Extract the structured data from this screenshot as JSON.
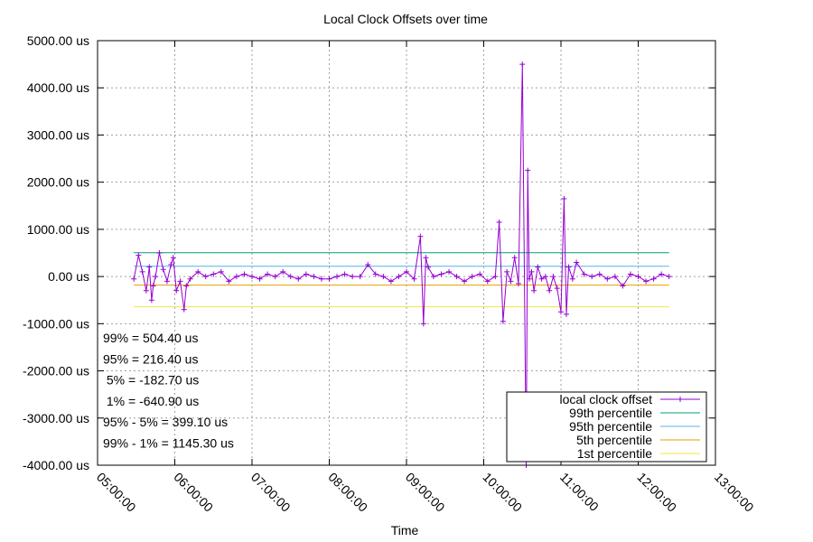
{
  "chart_data": {
    "type": "line",
    "title": "Local Clock Offsets over time",
    "xlabel": "Time",
    "ylabel": "",
    "x_ticks": [
      "05:00:00",
      "06:00:00",
      "07:00:00",
      "08:00:00",
      "09:00:00",
      "10:00:00",
      "11:00:00",
      "12:00:00",
      "13:00:00"
    ],
    "xlim_hours": [
      5,
      13
    ],
    "y_ticks": [
      "5000.00 us",
      "4000.00 us",
      "3000.00 us",
      "2000.00 us",
      "1000.00 us",
      "0.00 us",
      "-1000.00 us",
      "-2000.00 us",
      "-3000.00 us",
      "-4000.00 us"
    ],
    "ylim": [
      -4000,
      5000
    ],
    "grid": true,
    "legend_position": "bottom-right",
    "stats": [
      "99% = 504.40 us",
      "95% = 216.40 us",
      " 5% = -182.70 us",
      " 1% = -640.90 us",
      "95% - 5% = 399.10 us",
      "99% - 1% = 1145.30 us"
    ],
    "series": [
      {
        "name": "local clock offset",
        "color": "#9400d3",
        "time_hours": [
          5.47,
          5.53,
          5.58,
          5.63,
          5.67,
          5.7,
          5.72,
          5.75,
          5.8,
          5.85,
          5.9,
          5.95,
          5.98,
          6.02,
          6.07,
          6.12,
          6.15,
          6.2,
          6.3,
          6.4,
          6.5,
          6.6,
          6.7,
          6.8,
          6.9,
          7.0,
          7.1,
          7.2,
          7.3,
          7.4,
          7.5,
          7.6,
          7.7,
          7.8,
          7.9,
          8.0,
          8.1,
          8.2,
          8.3,
          8.4,
          8.5,
          8.6,
          8.7,
          8.8,
          8.9,
          9.0,
          9.1,
          9.18,
          9.22,
          9.25,
          9.28,
          9.35,
          9.45,
          9.55,
          9.65,
          9.75,
          9.85,
          9.95,
          10.05,
          10.15,
          10.2,
          10.25,
          10.3,
          10.35,
          10.4,
          10.45,
          10.5,
          10.55,
          10.57,
          10.59,
          10.62,
          10.65,
          10.7,
          10.75,
          10.8,
          10.85,
          10.9,
          10.95,
          11.0,
          11.04,
          11.07,
          11.1,
          11.15,
          11.2,
          11.3,
          11.4,
          11.5,
          11.6,
          11.7,
          11.8,
          11.9,
          12.0,
          12.1,
          12.2,
          12.3,
          12.4
        ],
        "values": [
          -50,
          450,
          100,
          -300,
          200,
          -500,
          -200,
          0,
          500,
          150,
          -100,
          250,
          400,
          -300,
          -100,
          -700,
          -200,
          -50,
          100,
          0,
          50,
          100,
          -100,
          0,
          50,
          0,
          -50,
          50,
          0,
          100,
          0,
          -50,
          50,
          0,
          -50,
          -50,
          0,
          50,
          0,
          0,
          250,
          50,
          0,
          -100,
          0,
          100,
          -50,
          850,
          -1000,
          400,
          200,
          0,
          50,
          100,
          0,
          -100,
          0,
          50,
          -100,
          0,
          1150,
          -950,
          100,
          -100,
          400,
          -150,
          4500,
          -4000,
          2250,
          -50,
          100,
          -300,
          200,
          -50,
          0,
          -300,
          0,
          -250,
          -750,
          1650,
          -800,
          200,
          -50,
          300,
          50,
          0,
          50,
          -50,
          0,
          -200,
          50,
          0,
          -100,
          -50,
          50,
          0
        ]
      },
      {
        "name": "99th percentile",
        "color": "#009e73",
        "value": 504.4
      },
      {
        "name": "95th percentile",
        "color": "#56b4e9",
        "value": 216.4
      },
      {
        "name": "5th percentile",
        "color": "#e69f00",
        "value": -182.7
      },
      {
        "name": "1st percentile",
        "color": "#f0e442",
        "value": -640.9
      }
    ]
  }
}
